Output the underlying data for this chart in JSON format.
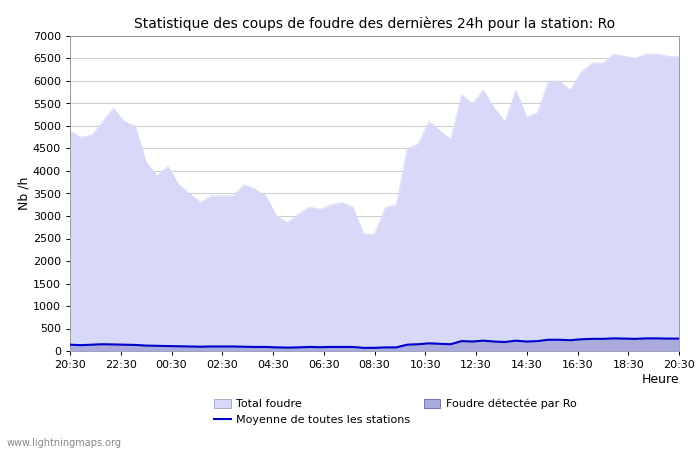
{
  "title": "Statistique des coups de foudre des dernières 24h pour la station: Ro",
  "xlabel": "Heure",
  "ylabel": "Nb /h",
  "ylim": [
    0,
    7000
  ],
  "yticks": [
    0,
    500,
    1000,
    1500,
    2000,
    2500,
    3000,
    3500,
    4000,
    4500,
    5000,
    5500,
    6000,
    6500,
    7000
  ],
  "xtick_labels": [
    "20:30",
    "22:30",
    "00:30",
    "02:30",
    "04:30",
    "06:30",
    "08:30",
    "10:30",
    "12:30",
    "14:30",
    "16:30",
    "18:30",
    "20:30"
  ],
  "total_foudre_color": "#d8d8f8",
  "foudre_detectee_color": "#aaaadd",
  "moyenne_color": "#0000cc",
  "background_color": "#ffffff",
  "grid_color": "#cccccc",
  "watermark": "www.lightningmaps.org",
  "total_foudre": [
    4900,
    4750,
    4800,
    5100,
    5400,
    5100,
    5000,
    4200,
    3900,
    4100,
    3700,
    3500,
    3300,
    3450,
    3450,
    3450,
    3700,
    3600,
    3450,
    3000,
    2850,
    3050,
    3200,
    3150,
    3250,
    3300,
    3200,
    2600,
    2600,
    3200,
    3250,
    4500,
    4600,
    5100,
    4900,
    4700,
    5700,
    5500,
    5800,
    5400,
    5100,
    5800,
    5200,
    5300,
    6000,
    6000,
    5800,
    6200,
    6400,
    6400,
    6600,
    6550,
    6500,
    6600,
    6600,
    6550,
    6550
  ],
  "foudre_detectee": [
    150,
    140,
    150,
    160,
    155,
    150,
    145,
    130,
    125,
    120,
    115,
    110,
    105,
    110,
    110,
    110,
    105,
    100,
    100,
    90,
    85,
    90,
    100,
    95,
    100,
    100,
    100,
    80,
    80,
    90,
    90,
    150,
    160,
    180,
    170,
    160,
    230,
    220,
    240,
    220,
    210,
    240,
    220,
    230,
    260,
    260,
    250,
    270,
    280,
    280,
    290,
    285,
    280,
    290,
    290,
    285,
    285
  ],
  "moyenne": [
    140,
    130,
    140,
    150,
    145,
    140,
    135,
    120,
    115,
    110,
    105,
    100,
    95,
    100,
    100,
    100,
    95,
    90,
    90,
    80,
    75,
    80,
    90,
    85,
    90,
    90,
    90,
    70,
    70,
    80,
    80,
    140,
    150,
    170,
    160,
    150,
    220,
    210,
    230,
    210,
    200,
    230,
    210,
    220,
    250,
    250,
    240,
    260,
    270,
    270,
    280,
    275,
    270,
    280,
    280,
    275,
    275
  ]
}
